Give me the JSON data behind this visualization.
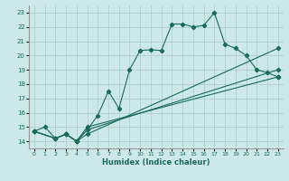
{
  "xlabel": "Humidex (Indice chaleur)",
  "xlim": [
    -0.5,
    23.5
  ],
  "ylim": [
    13.5,
    23.5
  ],
  "xticks": [
    0,
    1,
    2,
    3,
    4,
    5,
    6,
    7,
    8,
    9,
    10,
    11,
    12,
    13,
    14,
    15,
    16,
    17,
    18,
    19,
    20,
    21,
    22,
    23
  ],
  "yticks": [
    14,
    15,
    16,
    17,
    18,
    19,
    20,
    21,
    22,
    23
  ],
  "bg_color": "#cce8e8",
  "grid_color": "#aacccc",
  "line_color": "#1a6b5a",
  "lines": [
    {
      "x": [
        0,
        1,
        2,
        3,
        4,
        5,
        6,
        7,
        8,
        9,
        10,
        11,
        12,
        13,
        14,
        15,
        16,
        17,
        18,
        19,
        20,
        21,
        22,
        23
      ],
      "y": [
        14.7,
        15.0,
        14.2,
        14.5,
        14.0,
        14.8,
        15.8,
        17.5,
        16.3,
        19.0,
        20.35,
        20.4,
        20.35,
        22.2,
        22.2,
        22.0,
        22.1,
        23.0,
        20.8,
        20.5,
        20.0,
        19.0,
        18.8,
        18.5
      ]
    },
    {
      "x": [
        0,
        2,
        3,
        4,
        5,
        23
      ],
      "y": [
        14.7,
        14.2,
        14.5,
        14.0,
        15.0,
        18.5
      ]
    },
    {
      "x": [
        0,
        2,
        3,
        4,
        5,
        23
      ],
      "y": [
        14.7,
        14.2,
        14.5,
        14.0,
        14.8,
        19.0
      ]
    },
    {
      "x": [
        0,
        2,
        3,
        4,
        5,
        23
      ],
      "y": [
        14.7,
        14.2,
        14.5,
        14.0,
        14.5,
        20.5
      ]
    }
  ],
  "marker": "D",
  "markersize": 2.2,
  "linewidth": 0.8
}
